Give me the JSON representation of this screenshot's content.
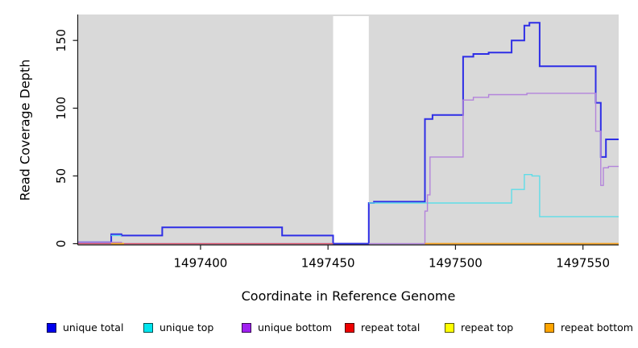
{
  "chart_data": {
    "type": "line",
    "style": "step",
    "title": "",
    "xlabel": "Coordinate in Reference Genome",
    "ylabel": "Read Coverage Depth",
    "xlim": [
      1497352,
      1497564
    ],
    "ylim": [
      0,
      169
    ],
    "grid": false,
    "legend_position": "bottom",
    "panel_background": "#D9D9D9",
    "axis_color": "#1a1a1a",
    "no_data_gap": {
      "x_start": 1497452,
      "x_end": 1497466
    },
    "x_ticks": [
      {
        "value": 1497400,
        "label": "1497400"
      },
      {
        "value": 1497450,
        "label": "1497450"
      },
      {
        "value": 1497500,
        "label": "1497500"
      },
      {
        "value": 1497550,
        "label": "1497550"
      }
    ],
    "y_ticks": [
      {
        "value": 0,
        "label": "0"
      },
      {
        "value": 50,
        "label": "50"
      },
      {
        "value": 100,
        "label": "100"
      },
      {
        "value": 150,
        "label": "150"
      }
    ],
    "series": [
      {
        "name": "unique total",
        "line_color": "#2E2EE6",
        "legend_color": "#0000EE",
        "line_width": 2,
        "segments": [
          [
            [
              1497352,
              1
            ],
            [
              1497365,
              7
            ],
            [
              1497369,
              6
            ],
            [
              1497385,
              12
            ],
            [
              1497432,
              6
            ],
            [
              1497452,
              0
            ],
            [
              1497466,
              30
            ],
            [
              1497468,
              31
            ],
            [
              1497488,
              92
            ],
            [
              1497491,
              95
            ],
            [
              1497503,
              138
            ],
            [
              1497507,
              140
            ],
            [
              1497513,
              141
            ],
            [
              1497522,
              150
            ],
            [
              1497527,
              161
            ],
            [
              1497529,
              163
            ],
            [
              1497533,
              131
            ],
            [
              1497555,
              104
            ],
            [
              1497557,
              64
            ],
            [
              1497559,
              77
            ],
            [
              1497564,
              77
            ]
          ]
        ]
      },
      {
        "name": "unique top",
        "line_color": "#5FDDE8",
        "legend_color": "#00E5EE",
        "line_width": 1.4,
        "segments": [
          [
            [
              1497365,
              6
            ],
            [
              1497369,
              6
            ]
          ],
          [
            [
              1497466,
              30
            ],
            [
              1497522,
              40
            ],
            [
              1497527,
              51
            ],
            [
              1497530,
              50
            ],
            [
              1497533,
              20
            ],
            [
              1497564,
              20
            ]
          ]
        ]
      },
      {
        "name": "unique bottom",
        "line_color": "#B383DB",
        "legend_color": "#A020F0",
        "line_width": 1.4,
        "segments": [
          [
            [
              1497352,
              1
            ],
            [
              1497369,
              0
            ],
            [
              1497452,
              0
            ]
          ],
          [
            [
              1497466,
              0
            ],
            [
              1497488,
              24
            ],
            [
              1497489,
              36
            ],
            [
              1497490,
              64
            ],
            [
              1497503,
              106
            ],
            [
              1497507,
              108
            ],
            [
              1497513,
              110
            ],
            [
              1497528,
              111
            ],
            [
              1497555,
              83
            ],
            [
              1497557,
              43
            ],
            [
              1497558,
              56
            ],
            [
              1497560,
              57
            ],
            [
              1497564,
              57
            ]
          ]
        ]
      },
      {
        "name": "repeat total",
        "line_color": "#DC5468",
        "legend_color": "#EE0000",
        "line_width": 1.2,
        "segments": [
          [
            [
              1497352,
              0
            ],
            [
              1497452,
              0
            ]
          ]
        ]
      },
      {
        "name": "repeat top",
        "line_color": "#F0F00A",
        "legend_color": "#FFFF00",
        "line_width": 1.2,
        "segments": [
          [
            [
              1497365,
              0
            ],
            [
              1497370,
              0
            ]
          ],
          [
            [
              1497488,
              0
            ],
            [
              1497564,
              0
            ]
          ]
        ]
      },
      {
        "name": "repeat bottom",
        "line_color": "#F6A021",
        "legend_color": "#FFA500",
        "line_width": 1.8,
        "segments": [
          [
            [
              1497365,
              0
            ],
            [
              1497370,
              0
            ]
          ],
          [
            [
              1497488,
              0
            ],
            [
              1497564,
              0
            ]
          ]
        ]
      }
    ]
  }
}
